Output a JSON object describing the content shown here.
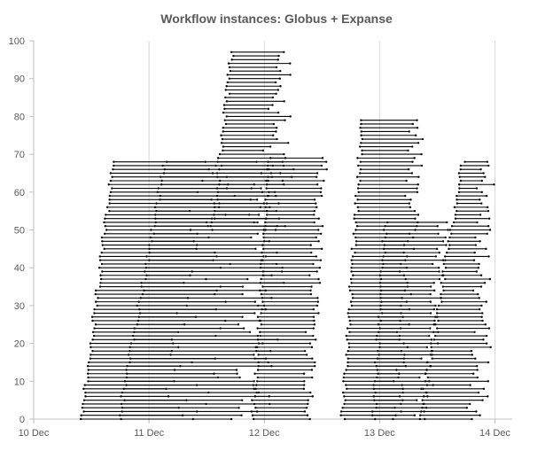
{
  "chart_data": {
    "type": "range-line",
    "title": "Workflow instances: Globus + Expanse",
    "xlabel": "",
    "ylabel": "",
    "x_tick_labels": [
      "10 Dec",
      "11 Dec",
      "12 Dec",
      "13 Dec",
      "14 Dec"
    ],
    "y_tick_labels": [
      "0",
      "10",
      "20",
      "30",
      "40",
      "50",
      "60",
      "70",
      "80",
      "90",
      "100"
    ],
    "xlim_days": [
      10,
      14.15
    ],
    "ylim": [
      0,
      100
    ],
    "grid": "vertical",
    "legend": "none",
    "line_color": "#000000",
    "grid_color": "#d9d9d9",
    "waves": [
      {
        "instances": [
          0,
          68
        ],
        "start_days": [
          10.42,
          10.69
        ],
        "end_days_min": [
          11.1,
          11.4
        ],
        "end_days_max": [
          11.6,
          11.8
        ]
      },
      {
        "instances": [
          0,
          68
        ],
        "start_days": [
          10.74,
          11.14
        ],
        "end_days_min": [
          11.7,
          11.9
        ],
        "end_days_max": [
          12.05,
          12.28
        ]
      },
      {
        "instances": [
          50,
          97
        ],
        "start_days": [
          11.55,
          11.72
        ],
        "end_days_min": [
          11.9,
          12.05
        ],
        "end_days_max": [
          12.2,
          12.25
        ]
      },
      {
        "instances": [
          0,
          69
        ],
        "start_days": [
          11.9,
          12.05
        ],
        "end_days_min": [
          12.3,
          12.45
        ],
        "end_days_max": [
          12.42,
          12.55
        ]
      },
      {
        "instances": [
          0,
          79
        ],
        "start_days": [
          12.68,
          12.85
        ],
        "end_days_min": [
          13.1,
          13.25
        ],
        "end_days_max": [
          13.2,
          13.4
        ]
      },
      {
        "instances": [
          0,
          52
        ],
        "start_days": [
          12.95,
          13.05
        ],
        "end_days_min": [
          13.3,
          13.5
        ],
        "end_days_max": [
          13.45,
          13.6
        ]
      },
      {
        "instances": [
          0,
          68
        ],
        "start_days": [
          13.35,
          13.72
        ],
        "end_days_min": [
          13.75,
          13.85
        ],
        "end_days_max": [
          13.95,
          14.0
        ]
      }
    ],
    "notes_visible": ""
  }
}
